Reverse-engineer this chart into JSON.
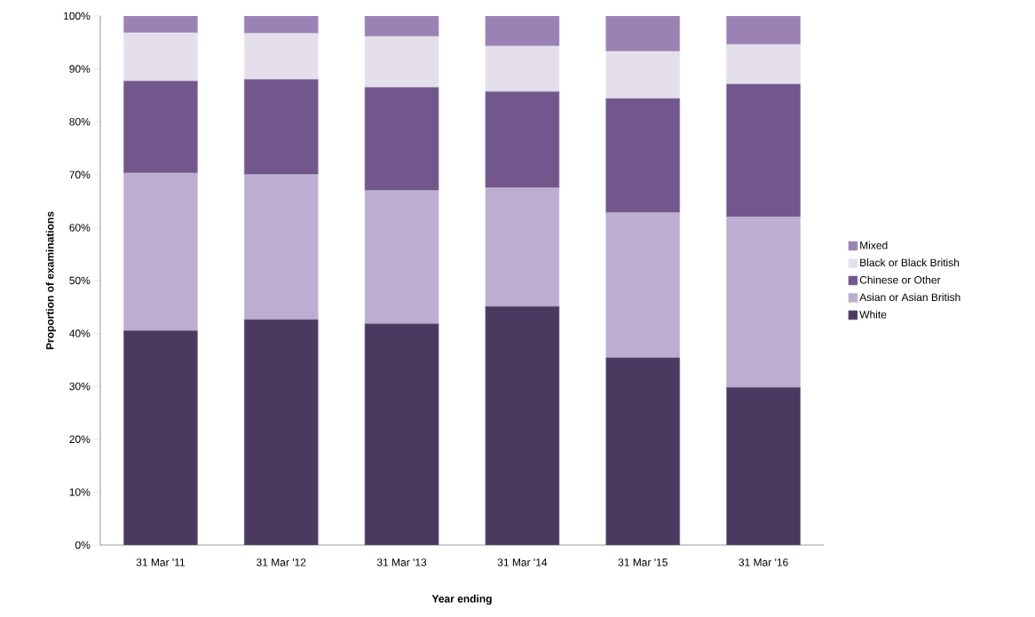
{
  "chart_data": {
    "type": "bar",
    "stacked": true,
    "xlabel": "Year ending",
    "ylabel": "Proportion of examinations",
    "categories": [
      "31 Mar '11",
      "31 Mar '12",
      "31 Mar '13",
      "31 Mar '14",
      "31 Mar '15",
      "31 Mar '16"
    ],
    "series": [
      {
        "name": "White",
        "color": "#4b3a60",
        "values": [
          40.5,
          42.6,
          41.8,
          45.1,
          35.4,
          29.8
        ]
      },
      {
        "name": "Asian or Asian British",
        "color": "#bcaed0",
        "values": [
          29.8,
          27.4,
          25.2,
          22.4,
          27.4,
          32.2
        ]
      },
      {
        "name": "Chinese or Other",
        "color": "#72578d",
        "values": [
          17.4,
          18.0,
          19.5,
          18.2,
          21.6,
          25.1
        ]
      },
      {
        "name": "Black or Black British",
        "color": "#e5dfec",
        "values": [
          9.1,
          8.7,
          9.6,
          8.6,
          8.9,
          7.5
        ]
      },
      {
        "name": "Mixed",
        "color": "#9a82b4",
        "values": [
          3.2,
          3.3,
          3.9,
          5.7,
          6.7,
          5.4
        ]
      }
    ],
    "ylim": [
      0,
      100
    ],
    "yticks": [
      {
        "value": 0,
        "label": "0%"
      },
      {
        "value": 10,
        "label": "10%"
      },
      {
        "value": 20,
        "label": "20%"
      },
      {
        "value": 30,
        "label": "30%"
      },
      {
        "value": 40,
        "label": "40%"
      },
      {
        "value": 50,
        "label": "50%"
      },
      {
        "value": 60,
        "label": "60%"
      },
      {
        "value": 70,
        "label": "70%"
      },
      {
        "value": 80,
        "label": "80%"
      },
      {
        "value": 90,
        "label": "90%"
      },
      {
        "value": 100,
        "label": "100%"
      }
    ],
    "grid": false,
    "legend": "right"
  }
}
